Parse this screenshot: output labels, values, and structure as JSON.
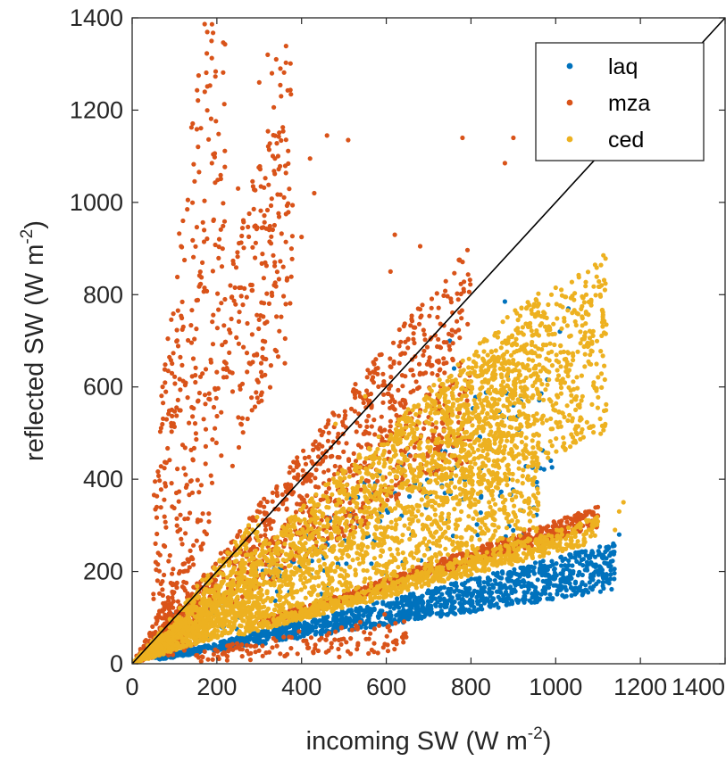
{
  "chart_data": {
    "type": "scatter",
    "xlabel": {
      "main": "incoming SW (W m",
      "sup": "-2",
      "close": ")"
    },
    "ylabel": {
      "main": "reflected SW (W m",
      "sup": "-2",
      "close": ")"
    },
    "xlim": [
      0,
      1400
    ],
    "ylim": [
      0,
      1400
    ],
    "x_ticks": [
      "0",
      "200",
      "400",
      "600",
      "800",
      "1000",
      "1200",
      "1400"
    ],
    "y_ticks": [
      "0",
      "200",
      "400",
      "600",
      "800",
      "1000",
      "1200",
      "1400"
    ],
    "grid": false,
    "legend_position": "top-right",
    "reference_line": {
      "x": [
        0,
        1400
      ],
      "y": [
        0,
        1400
      ],
      "color": "#000000"
    },
    "series": [
      {
        "name": "laq",
        "color": "#0072BD",
        "groups": [
          {
            "kind": "band",
            "x": [
              60,
              1140
            ],
            "slope": [
              0.14,
              0.23
            ],
            "n": 1300
          },
          {
            "kind": "band",
            "x": [
              100,
              1000
            ],
            "slope": [
              0.28,
              0.72
            ],
            "n": 180
          },
          {
            "kind": "band",
            "x": [
              5,
              120
            ],
            "slope": [
              0.2,
              1.2
            ],
            "n": 60
          }
        ],
        "points": [
          [
            750,
            700
          ],
          [
            880,
            785
          ],
          [
            1010,
            720
          ],
          [
            1030,
            770
          ],
          [
            1110,
            230
          ],
          [
            1150,
            280
          ],
          [
            1120,
            190
          ],
          [
            900,
            560
          ],
          [
            850,
            660
          ],
          [
            760,
            640
          ]
        ]
      },
      {
        "name": "mza",
        "color": "#D95319",
        "groups": [
          {
            "kind": "band",
            "x": [
              30,
              800
            ],
            "slope": [
              0.55,
              1.15
            ],
            "n": 1100
          },
          {
            "kind": "band",
            "x": [
              50,
              220
            ],
            "slope": [
              1.5,
              8.5
            ],
            "n": 320
          },
          {
            "kind": "band",
            "x": [
              220,
              380
            ],
            "slope": [
              1.8,
              3.7
            ],
            "n": 220
          },
          {
            "kind": "band",
            "x": [
              300,
              1100
            ],
            "slope": [
              0.27,
              0.31
            ],
            "n": 650
          },
          {
            "kind": "band",
            "x": [
              10,
              150
            ],
            "slope": [
              0.2,
              1.8
            ],
            "n": 200
          },
          {
            "kind": "band",
            "x": [
              150,
              650
            ],
            "slope": [
              0.03,
              0.18
            ],
            "n": 140
          }
        ],
        "points": [
          [
            320,
            1320
          ],
          [
            340,
            1310
          ],
          [
            300,
            1260
          ],
          [
            330,
            1280
          ],
          [
            350,
            1290
          ],
          [
            460,
            1145
          ],
          [
            510,
            1135
          ],
          [
            420,
            1095
          ],
          [
            900,
            1140
          ],
          [
            880,
            1085
          ],
          [
            780,
            1140
          ],
          [
            430,
            1020
          ],
          [
            620,
            930
          ],
          [
            680,
            905
          ],
          [
            400,
            925
          ],
          [
            610,
            850
          ],
          [
            250,
            1030
          ],
          [
            130,
            985
          ],
          [
            120,
            960
          ],
          [
            170,
            940
          ]
        ]
      },
      {
        "name": "ced",
        "color": "#EDB120",
        "groups": [
          {
            "kind": "band",
            "x": [
              10,
              960
            ],
            "slope": [
              0.28,
              0.85
            ],
            "n": 2600
          },
          {
            "kind": "band",
            "x": [
              700,
              1120
            ],
            "slope": [
              0.45,
              0.8
            ],
            "n": 700
          },
          {
            "kind": "band",
            "x": [
              250,
              1100
            ],
            "slope": [
              0.24,
              0.29
            ],
            "n": 650
          },
          {
            "kind": "band",
            "x": [
              5,
              300
            ],
            "slope": [
              0.5,
              1.1
            ],
            "n": 300
          }
        ],
        "points": [
          [
            1000,
            815
          ],
          [
            990,
            800
          ],
          [
            960,
            780
          ],
          [
            1110,
            740
          ],
          [
            1160,
            350
          ],
          [
            1150,
            330
          ],
          [
            1050,
            760
          ],
          [
            550,
            580
          ],
          [
            480,
            520
          ],
          [
            1140,
            290
          ]
        ]
      }
    ]
  }
}
